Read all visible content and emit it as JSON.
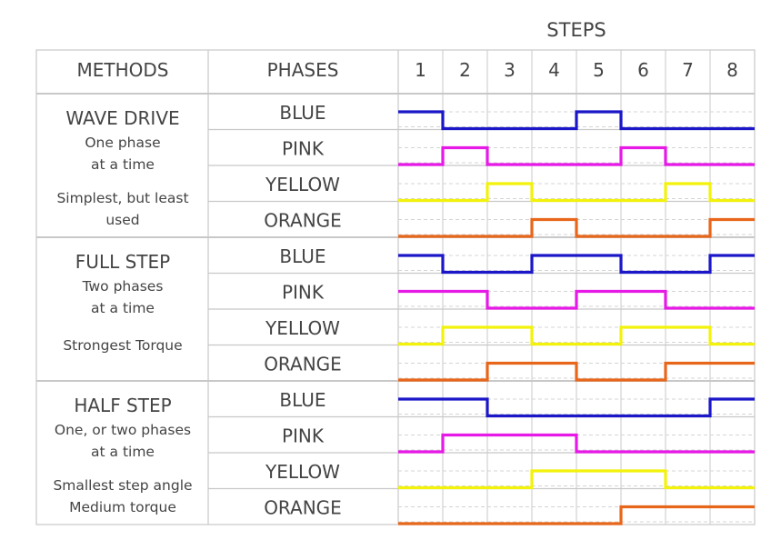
{
  "title": "STEPS",
  "header": {
    "methods": "METHODS",
    "phases": "PHASES",
    "steps": [
      "1",
      "2",
      "3",
      "4",
      "5",
      "6",
      "7",
      "8"
    ]
  },
  "colors": {
    "BLUE": "#1b17c8",
    "PINK": "#e619e6",
    "YELLOW": "#f2f20a",
    "ORANGE": "#e8661a",
    "grid": "#c8c8c8",
    "text": "#444444"
  },
  "sections": [
    {
      "name": "WAVE DRIVE",
      "description": [
        "One phase",
        "at a time"
      ],
      "note": [
        "Simplest, but least",
        "used"
      ],
      "phases": [
        {
          "label": "BLUE",
          "color": "BLUE",
          "levels": [
            1,
            0,
            0,
            0,
            1,
            0,
            0,
            0
          ]
        },
        {
          "label": "PINK",
          "color": "PINK",
          "levels": [
            0,
            1,
            0,
            0,
            0,
            1,
            0,
            0
          ]
        },
        {
          "label": "YELLOW",
          "color": "YELLOW",
          "levels": [
            0,
            0,
            1,
            0,
            0,
            0,
            1,
            0
          ]
        },
        {
          "label": "ORANGE",
          "color": "ORANGE",
          "levels": [
            0,
            0,
            0,
            1,
            0,
            0,
            0,
            1
          ]
        }
      ]
    },
    {
      "name": "FULL STEP",
      "description": [
        "Two phases",
        "at a time"
      ],
      "note": [
        "Strongest Torque"
      ],
      "phases": [
        {
          "label": "BLUE",
          "color": "BLUE",
          "levels": [
            1,
            0,
            0,
            1,
            1,
            0,
            0,
            1
          ]
        },
        {
          "label": "PINK",
          "color": "PINK",
          "levels": [
            1,
            1,
            0,
            0,
            1,
            1,
            0,
            0
          ]
        },
        {
          "label": "YELLOW",
          "color": "YELLOW",
          "levels": [
            0,
            1,
            1,
            0,
            0,
            1,
            1,
            0
          ]
        },
        {
          "label": "ORANGE",
          "color": "ORANGE",
          "levels": [
            0,
            0,
            1,
            1,
            0,
            0,
            1,
            1
          ]
        }
      ]
    },
    {
      "name": "HALF STEP",
      "description": [
        "One, or two phases",
        "at a time"
      ],
      "note": [
        "Smallest step angle",
        "Medium torque"
      ],
      "phases": [
        {
          "label": "BLUE",
          "color": "BLUE",
          "levels": [
            1,
            1,
            0,
            0,
            0,
            0,
            0,
            1
          ]
        },
        {
          "label": "PINK",
          "color": "PINK",
          "levels": [
            0,
            1,
            1,
            1,
            0,
            0,
            0,
            0
          ]
        },
        {
          "label": "YELLOW",
          "color": "YELLOW",
          "levels": [
            0,
            0,
            0,
            1,
            1,
            1,
            0,
            0
          ]
        },
        {
          "label": "ORANGE",
          "color": "ORANGE",
          "levels": [
            0,
            0,
            0,
            0,
            0,
            1,
            1,
            1
          ]
        }
      ]
    }
  ]
}
